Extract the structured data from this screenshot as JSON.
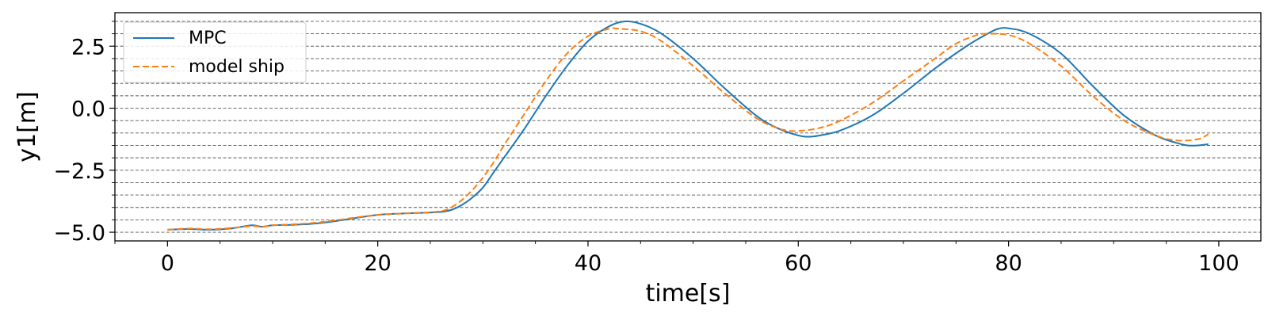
{
  "chart_data": {
    "type": "line",
    "xlabel": "time[s]",
    "ylabel": "y1[m]",
    "xlim": [
      -5,
      104
    ],
    "ylim": [
      -5.35,
      3.85
    ],
    "x_ticks": [
      0,
      20,
      40,
      60,
      80,
      100
    ],
    "x_tick_labels": [
      "0",
      "20",
      "40",
      "60",
      "80",
      "100"
    ],
    "y_ticks": [
      -5.0,
      -2.5,
      0.0,
      2.5
    ],
    "y_tick_labels": [
      "−5.0",
      "−2.5",
      "0.0",
      "2.5"
    ],
    "grid": "horizontal dashed lines at y minor ticks (0.5 step)",
    "legend_position": "upper-left",
    "series": [
      {
        "name": "MPC",
        "color": "#1f77b4",
        "style": "solid",
        "x": [
          0,
          2,
          4,
          6,
          8,
          9,
          10,
          12,
          14,
          16,
          18,
          20,
          22,
          24,
          26,
          27,
          28,
          29,
          30,
          31,
          32,
          34,
          36,
          38,
          40,
          42,
          43.5,
          45,
          47,
          50,
          53,
          56,
          58,
          60,
          61,
          62,
          64,
          67,
          70,
          73,
          76,
          78,
          79,
          80,
          82,
          85,
          88,
          91,
          94,
          96,
          97,
          98,
          99
        ],
        "y": [
          -4.9,
          -4.87,
          -4.9,
          -4.85,
          -4.72,
          -4.78,
          -4.72,
          -4.7,
          -4.65,
          -4.55,
          -4.42,
          -4.3,
          -4.25,
          -4.22,
          -4.18,
          -4.1,
          -3.9,
          -3.6,
          -3.2,
          -2.6,
          -2.0,
          -0.8,
          0.5,
          1.7,
          2.7,
          3.3,
          3.5,
          3.4,
          3.0,
          2.0,
          0.8,
          -0.3,
          -0.8,
          -1.1,
          -1.15,
          -1.1,
          -0.9,
          -0.3,
          0.6,
          1.6,
          2.5,
          3.0,
          3.2,
          3.22,
          3.0,
          2.2,
          0.9,
          -0.3,
          -1.1,
          -1.4,
          -1.5,
          -1.5,
          -1.45
        ]
      },
      {
        "name": "model ship",
        "color": "#ff7f0e",
        "style": "dashed",
        "x": [
          0,
          2,
          4,
          6,
          8,
          9,
          10,
          12,
          14,
          16,
          18,
          20,
          22,
          24,
          26,
          27,
          28,
          29,
          30,
          31,
          32,
          34,
          36,
          38,
          40,
          42,
          43,
          45,
          47,
          50,
          53,
          56,
          58,
          59,
          60,
          62,
          64,
          67,
          70,
          73,
          75,
          77,
          78,
          80,
          82,
          85,
          88,
          91,
          94,
          96,
          98,
          99
        ],
        "y": [
          -4.9,
          -4.85,
          -4.88,
          -4.83,
          -4.75,
          -4.78,
          -4.72,
          -4.68,
          -4.62,
          -4.52,
          -4.4,
          -4.3,
          -4.25,
          -4.22,
          -4.15,
          -4.0,
          -3.7,
          -3.3,
          -2.8,
          -2.2,
          -1.5,
          -0.2,
          1.1,
          2.2,
          2.9,
          3.2,
          3.2,
          3.1,
          2.7,
          1.7,
          0.6,
          -0.4,
          -0.8,
          -0.9,
          -0.92,
          -0.8,
          -0.5,
          0.2,
          1.1,
          2.0,
          2.6,
          2.95,
          3.0,
          2.95,
          2.6,
          1.7,
          0.5,
          -0.5,
          -1.1,
          -1.3,
          -1.25,
          -1.05
        ]
      }
    ]
  }
}
